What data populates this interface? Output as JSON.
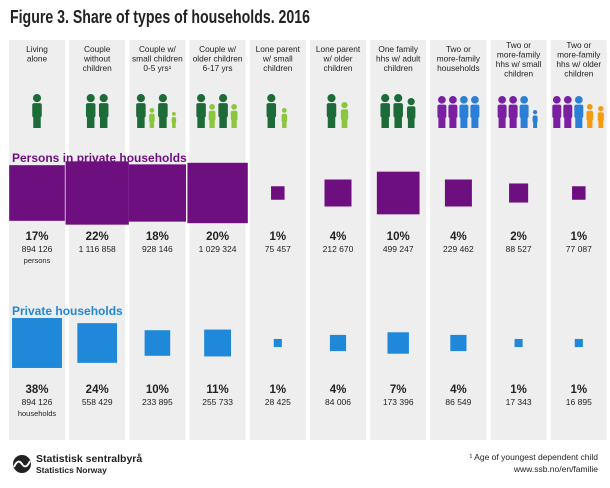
{
  "title": "Figure 3. Share of types of households. 2016",
  "columns": [
    {
      "label": [
        "Living",
        "alone"
      ]
    },
    {
      "label": [
        "Couple",
        "without",
        "children"
      ]
    },
    {
      "label": [
        "Couple w/",
        "small children",
        "0-5 yrs¹"
      ]
    },
    {
      "label": [
        "Couple w/",
        "older children",
        "6-17 yrs"
      ]
    },
    {
      "label": [
        "Lone parent",
        "w/ small",
        "children"
      ]
    },
    {
      "label": [
        "Lone parent",
        "w/ older",
        "children"
      ]
    },
    {
      "label": [
        "One family",
        "hhs w/ adult",
        "children"
      ]
    },
    {
      "label": [
        "Two or",
        "more-family",
        "households"
      ]
    },
    {
      "label": [
        "Two or",
        "more-family",
        "hhs w/ small",
        "children"
      ]
    },
    {
      "label": [
        "Two or",
        "more-family",
        "hhs w/ older",
        "children"
      ]
    }
  ],
  "sections": [
    {
      "title": "Persons in private households",
      "color": "#6e0f7f",
      "unit_label": "persons",
      "items": [
        {
          "percent": 17,
          "percent_label": "17%",
          "count": "894 126"
        },
        {
          "percent": 22,
          "percent_label": "22%",
          "count": "1 116 858"
        },
        {
          "percent": 18,
          "percent_label": "18%",
          "count": "928 146"
        },
        {
          "percent": 20,
          "percent_label": "20%",
          "count": "1 029 324"
        },
        {
          "percent": 1,
          "percent_label": "1%",
          "count": "75 457"
        },
        {
          "percent": 4,
          "percent_label": "4%",
          "count": "212 670"
        },
        {
          "percent": 10,
          "percent_label": "10%",
          "count": "499 247"
        },
        {
          "percent": 4,
          "percent_label": "4%",
          "count": "229 462"
        },
        {
          "percent": 2,
          "percent_label": "2%",
          "count": "88 527"
        },
        {
          "percent": 1,
          "percent_label": "1%",
          "count": "77 087"
        }
      ]
    },
    {
      "title": "Private households",
      "color": "#1f88d8",
      "unit_label": "households",
      "items": [
        {
          "percent": 38,
          "percent_label": "38%",
          "count": "894 126"
        },
        {
          "percent": 24,
          "percent_label": "24%",
          "count": "558 429"
        },
        {
          "percent": 10,
          "percent_label": "10%",
          "count": "233 895"
        },
        {
          "percent": 11,
          "percent_label": "11%",
          "count": "255 733"
        },
        {
          "percent": 1,
          "percent_label": "1%",
          "count": "28 425"
        },
        {
          "percent": 4,
          "percent_label": "4%",
          "count": "84 006"
        },
        {
          "percent": 7,
          "percent_label": "7%",
          "count": "173 396"
        },
        {
          "percent": 4,
          "percent_label": "4%",
          "count": "86 549"
        },
        {
          "percent": 1,
          "percent_label": "1%",
          "count": "17 343"
        },
        {
          "percent": 1,
          "percent_label": "1%",
          "count": "16 895"
        }
      ]
    }
  ],
  "footer": {
    "org": "Statistisk sentralbyrå",
    "org_en": "Statistics Norway",
    "note": "¹ Age of youngest dependent child",
    "url": "www.ssb.no/en/familie"
  }
}
